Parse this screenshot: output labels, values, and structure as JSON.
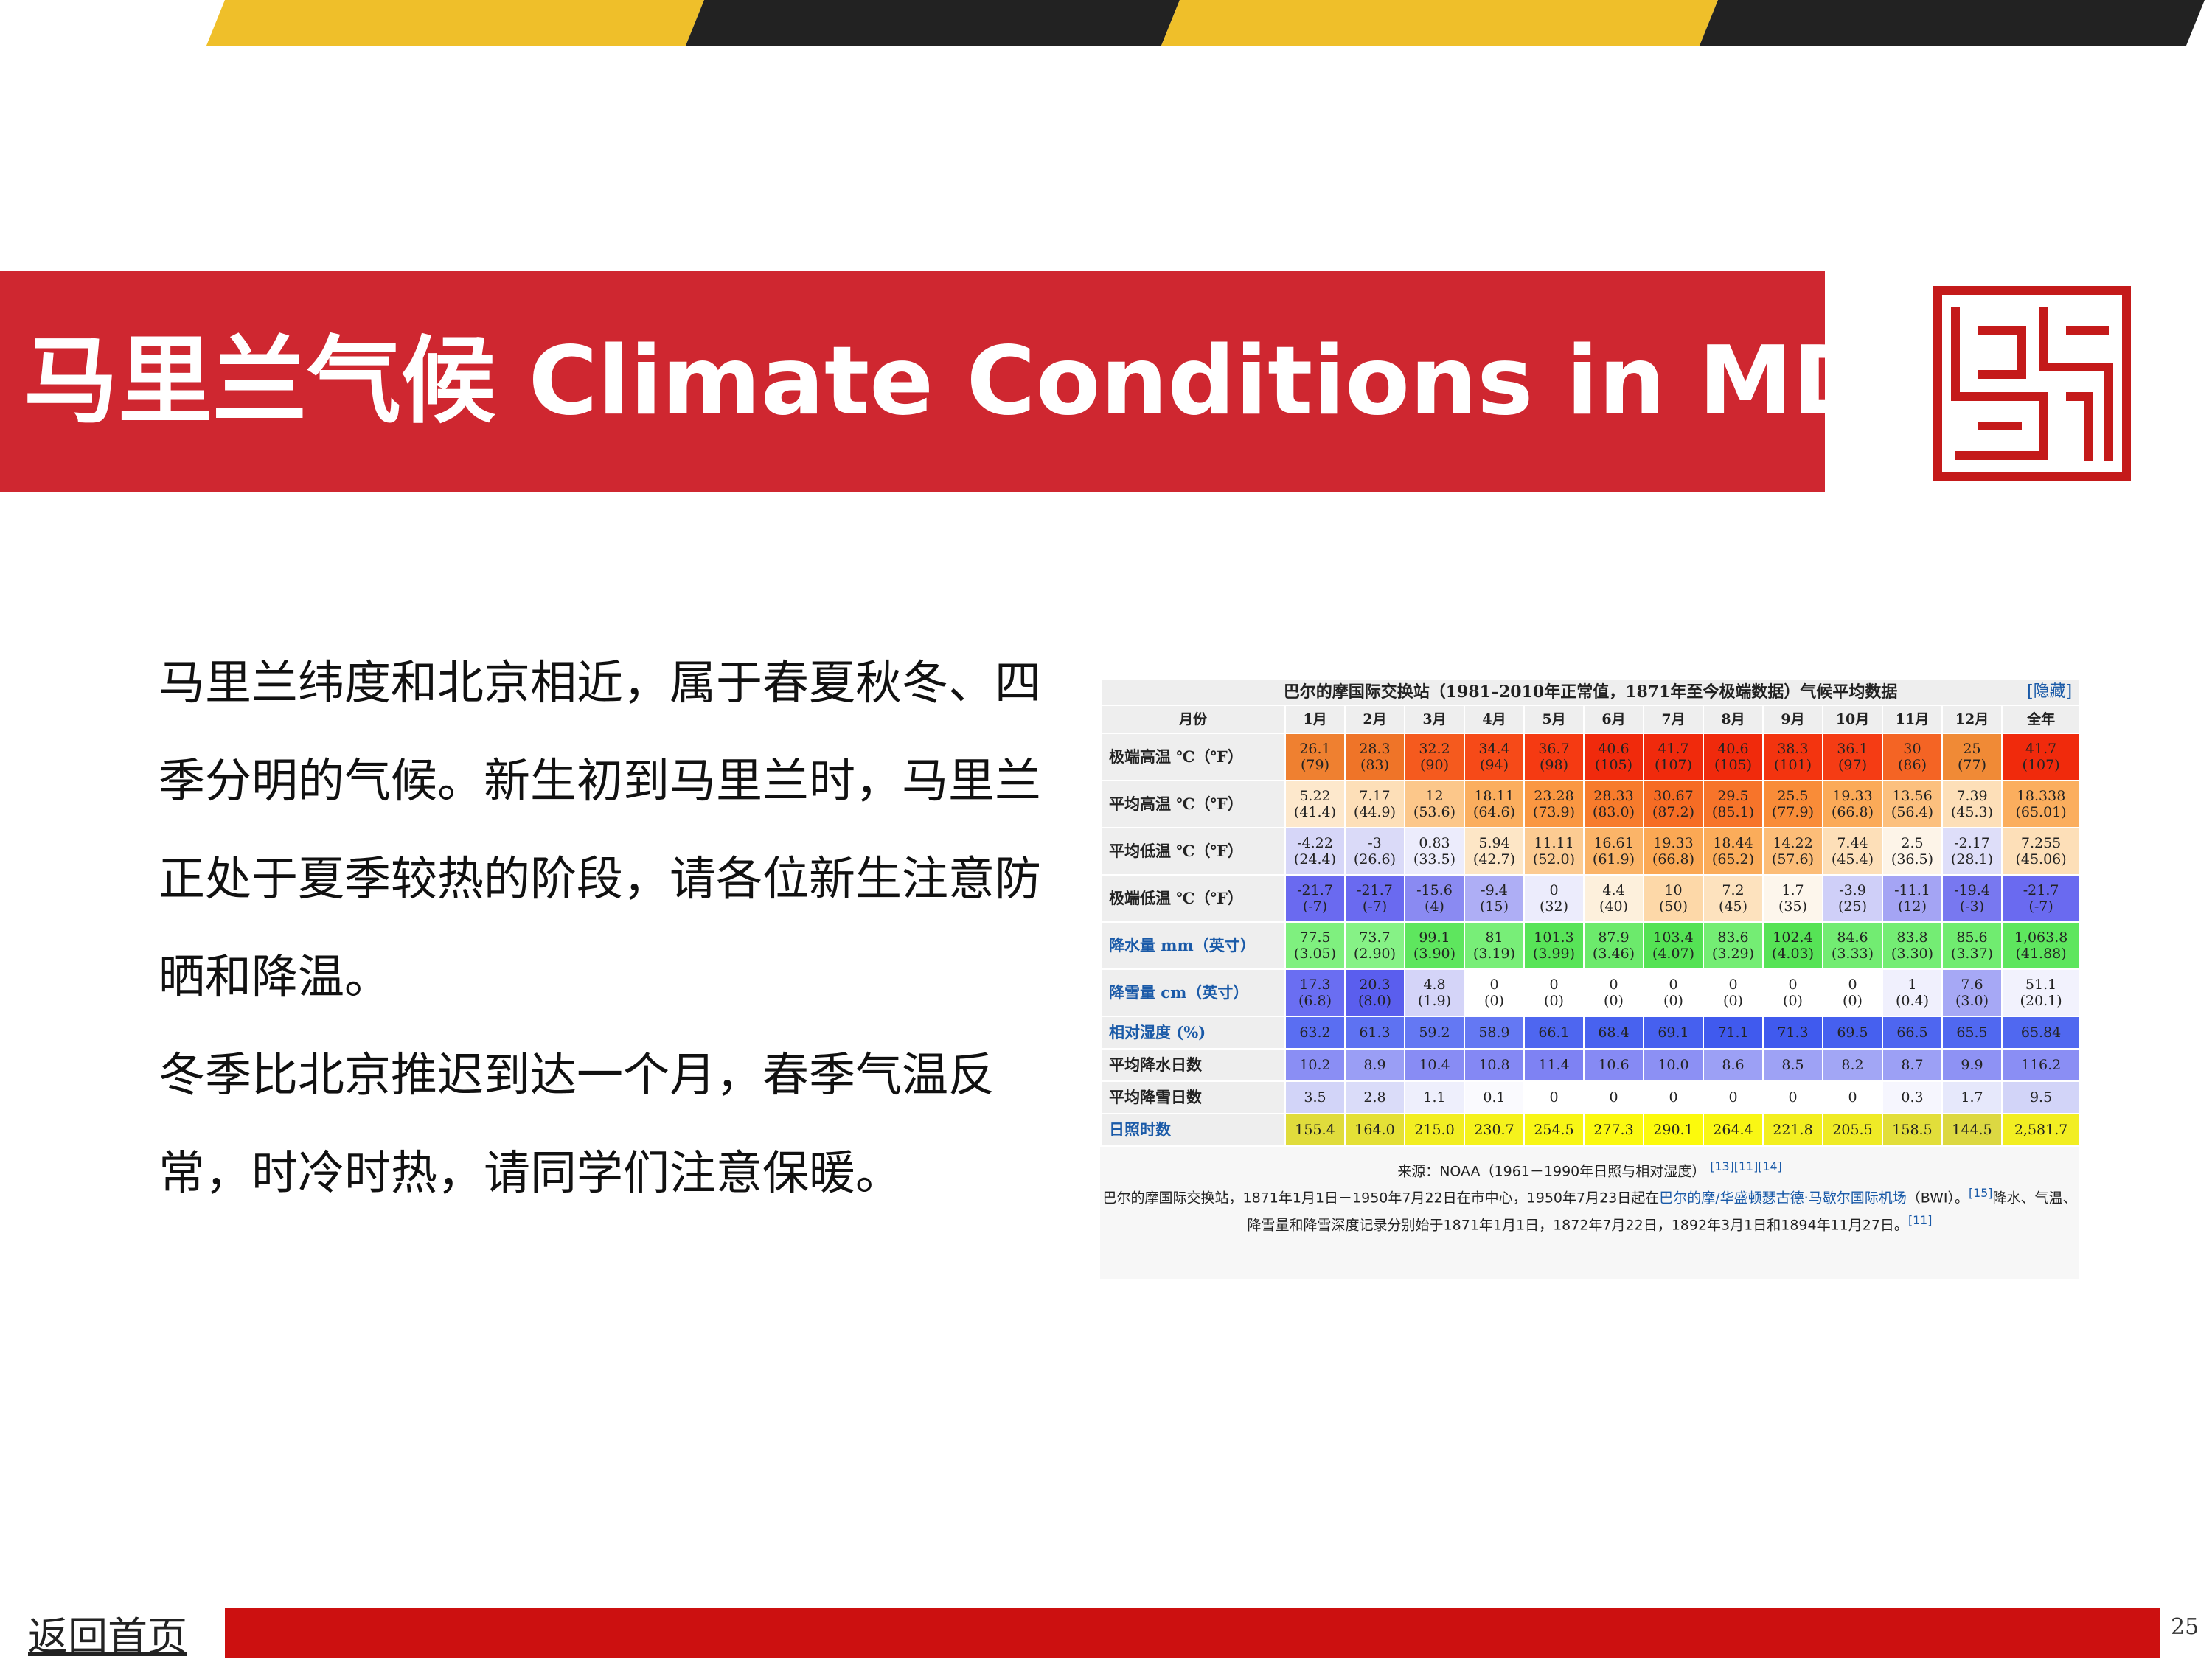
{
  "colors": {
    "accent_red": "#cf2730",
    "stripe_yellow": "#efbf2a",
    "stripe_dark": "#222222",
    "footer_red": "#cc1010",
    "link_blue": "#1a5aa8"
  },
  "title": "马里兰气候 Climate Conditions in MD",
  "logo_icon": "seal-logo-icon",
  "body": {
    "para1": "马里兰纬度和北京相近，属于春夏秋冬、四季分明的气候。新生初到马里兰时，马里兰正处于夏季较热的阶段，请各位新生注意防晒和降温。",
    "para2": "冬季比北京推迟到达一个月，春季气温反常，时冷时热，请同学们注意保暖。"
  },
  "climate_table": {
    "caption": "巴尔的摩国际交换站（1981–2010年正常值，1871年至今极端数据）气候平均数据",
    "hide_label": "[隐藏]",
    "header_label": "月份",
    "months": [
      "1月",
      "2月",
      "3月",
      "4月",
      "5月",
      "6月",
      "7月",
      "8月",
      "9月",
      "10月",
      "11月",
      "12月",
      "全年"
    ],
    "rows": [
      {
        "label": "极端高温 ℃（℉）",
        "link": false,
        "cells": [
          {
            "v": "26.1",
            "s": "(79)",
            "c": "#ef8030"
          },
          {
            "v": "28.3",
            "s": "(83)",
            "c": "#ef7428"
          },
          {
            "v": "32.2",
            "s": "(90)",
            "c": "#f55a1e"
          },
          {
            "v": "34.4",
            "s": "(94)",
            "c": "#f64a18"
          },
          {
            "v": "36.7",
            "s": "(98)",
            "c": "#f53a12"
          },
          {
            "v": "40.6",
            "s": "(105)",
            "c": "#f02a0c"
          },
          {
            "v": "41.7",
            "s": "(107)",
            "c": "#f02a0c"
          },
          {
            "v": "40.6",
            "s": "(105)",
            "c": "#f02a0c"
          },
          {
            "v": "38.3",
            "s": "(101)",
            "c": "#f3340f"
          },
          {
            "v": "36.1",
            "s": "(97)",
            "c": "#f53c14"
          },
          {
            "v": "30",
            "s": "(86)",
            "c": "#f46424"
          },
          {
            "v": "25",
            "s": "(77)",
            "c": "#f08a36"
          },
          {
            "v": "41.7",
            "s": "(107)",
            "c": "#f02a0c"
          }
        ]
      },
      {
        "label": "平均高温 ℃（℉）",
        "link": false,
        "cells": [
          {
            "v": "5.22",
            "s": "(41.4)",
            "c": "#fde8cc"
          },
          {
            "v": "7.17",
            "s": "(44.9)",
            "c": "#fddfb8"
          },
          {
            "v": "12",
            "s": "(53.6)",
            "c": "#fcc78a"
          },
          {
            "v": "18.11",
            "s": "(64.6)",
            "c": "#fbae5e"
          },
          {
            "v": "23.28",
            "s": "(73.9)",
            "c": "#fa9742"
          },
          {
            "v": "28.33",
            "s": "(83.0)",
            "c": "#f77b2c"
          },
          {
            "v": "30.67",
            "s": "(87.2)",
            "c": "#f66c24"
          },
          {
            "v": "29.5",
            "s": "(85.1)",
            "c": "#f7742a"
          },
          {
            "v": "25.5",
            "s": "(77.9)",
            "c": "#f98c38"
          },
          {
            "v": "19.33",
            "s": "(66.8)",
            "c": "#fbaa58"
          },
          {
            "v": "13.56",
            "s": "(56.4)",
            "c": "#fcc07e"
          },
          {
            "v": "7.39",
            "s": "(45.3)",
            "c": "#fddfb8"
          },
          {
            "v": "18.338",
            "s": "(65.01)",
            "c": "#fbae5e"
          }
        ]
      },
      {
        "label": "平均低温 ℃（℉）",
        "link": false,
        "cells": [
          {
            "v": "-4.22",
            "s": "(24.4)",
            "c": "#d6d6f8"
          },
          {
            "v": "-3",
            "s": "(26.6)",
            "c": "#dadaf8"
          },
          {
            "v": "0.83",
            "s": "(33.5)",
            "c": "#ececfc"
          },
          {
            "v": "5.94",
            "s": "(42.7)",
            "c": "#fde6c6"
          },
          {
            "v": "11.11",
            "s": "(52.0)",
            "c": "#fccb92"
          },
          {
            "v": "16.61",
            "s": "(61.9)",
            "c": "#fbb468"
          },
          {
            "v": "19.33",
            "s": "(66.8)",
            "c": "#fba854"
          },
          {
            "v": "18.44",
            "s": "(65.2)",
            "c": "#fbac5a"
          },
          {
            "v": "14.22",
            "s": "(57.6)",
            "c": "#fcbd78"
          },
          {
            "v": "7.44",
            "s": "(45.4)",
            "c": "#fddfb8"
          },
          {
            "v": "2.5",
            "s": "(36.5)",
            "c": "#fdf4e8"
          },
          {
            "v": "-2.17",
            "s": "(28.1)",
            "c": "#dedef9"
          },
          {
            "v": "7.255",
            "s": "(45.06)",
            "c": "#fddfb8"
          }
        ]
      },
      {
        "label": "极端低温 ℃（℉）",
        "link": false,
        "cells": [
          {
            "v": "-21.7",
            "s": "(-7)",
            "c": "#6a6af0"
          },
          {
            "v": "-21.7",
            "s": "(-7)",
            "c": "#6a6af0"
          },
          {
            "v": "-15.6",
            "s": "(4)",
            "c": "#8a8af2"
          },
          {
            "v": "-9.4",
            "s": "(15)",
            "c": "#aeaef5"
          },
          {
            "v": "0",
            "s": "(32)",
            "c": "#ececfc"
          },
          {
            "v": "4.4",
            "s": "(40)",
            "c": "#fdf0dc"
          },
          {
            "v": "10",
            "s": "(50)",
            "c": "#fdd8a8"
          },
          {
            "v": "7.2",
            "s": "(45)",
            "c": "#fde2be"
          },
          {
            "v": "1.7",
            "s": "(35)",
            "c": "#fdf6ec"
          },
          {
            "v": "-3.9",
            "s": "(25)",
            "c": "#cfcff8"
          },
          {
            "v": "-11.1",
            "s": "(12)",
            "c": "#a4a4f4"
          },
          {
            "v": "-19.4",
            "s": "(-3)",
            "c": "#7878f0"
          },
          {
            "v": "-21.7",
            "s": "(-7)",
            "c": "#6a6af0"
          }
        ]
      },
      {
        "label": "降水量 mm（英寸）",
        "link": true,
        "cells": [
          {
            "v": "77.5",
            "s": "(3.05)",
            "c": "#7ff07f"
          },
          {
            "v": "73.7",
            "s": "(2.90)",
            "c": "#86f286"
          },
          {
            "v": "99.1",
            "s": "(3.90)",
            "c": "#5ee65e"
          },
          {
            "v": "81",
            "s": "(3.19)",
            "c": "#78ee78"
          },
          {
            "v": "101.3",
            "s": "(3.99)",
            "c": "#58e458"
          },
          {
            "v": "87.9",
            "s": "(3.46)",
            "c": "#6cea6c"
          },
          {
            "v": "103.4",
            "s": "(4.07)",
            "c": "#54e254"
          },
          {
            "v": "83.6",
            "s": "(3.29)",
            "c": "#74ed74"
          },
          {
            "v": "102.4",
            "s": "(4.03)",
            "c": "#56e356"
          },
          {
            "v": "84.6",
            "s": "(3.33)",
            "c": "#72ec72"
          },
          {
            "v": "83.8",
            "s": "(3.30)",
            "c": "#74ed74"
          },
          {
            "v": "85.6",
            "s": "(3.37)",
            "c": "#70ec70"
          },
          {
            "v": "1,063.8",
            "s": "(41.88)",
            "c": "#5ee65e"
          }
        ]
      },
      {
        "label": "降雪量 cm（英寸）",
        "link": true,
        "cells": [
          {
            "v": "17.3",
            "s": "(6.8)",
            "c": "#6a6ef2"
          },
          {
            "v": "20.3",
            "s": "(8.0)",
            "c": "#5a5eee"
          },
          {
            "v": "4.8",
            "s": "(1.9)",
            "c": "#d4d4f8"
          },
          {
            "v": "0",
            "s": "(0)",
            "c": "#ffffff"
          },
          {
            "v": "0",
            "s": "(0)",
            "c": "#ffffff"
          },
          {
            "v": "0",
            "s": "(0)",
            "c": "#ffffff"
          },
          {
            "v": "0",
            "s": "(0)",
            "c": "#ffffff"
          },
          {
            "v": "0",
            "s": "(0)",
            "c": "#ffffff"
          },
          {
            "v": "0",
            "s": "(0)",
            "c": "#ffffff"
          },
          {
            "v": "0",
            "s": "(0)",
            "c": "#ffffff"
          },
          {
            "v": "1",
            "s": "(0.4)",
            "c": "#f0f0fd"
          },
          {
            "v": "7.6",
            "s": "(3.0)",
            "c": "#a6a8f5"
          },
          {
            "v": "51.1",
            "s": "(20.1)",
            "c": "#f2f2fd"
          }
        ]
      }
    ],
    "single_rows": [
      {
        "label": "相对湿度 (%)",
        "link": true,
        "cells": [
          {
            "v": "63.2",
            "c": "#5a6ef2"
          },
          {
            "v": "61.3",
            "c": "#5e72f2"
          },
          {
            "v": "59.2",
            "c": "#6478f3"
          },
          {
            "v": "58.9",
            "c": "#6478f3"
          },
          {
            "v": "66.1",
            "c": "#4e66f0"
          },
          {
            "v": "68.4",
            "c": "#4862ef"
          },
          {
            "v": "69.1",
            "c": "#4660ef"
          },
          {
            "v": "71.1",
            "c": "#405aee"
          },
          {
            "v": "71.3",
            "c": "#405aee"
          },
          {
            "v": "69.5",
            "c": "#4660ef"
          },
          {
            "v": "66.5",
            "c": "#4e66f0"
          },
          {
            "v": "65.5",
            "c": "#5068f0"
          },
          {
            "v": "65.84",
            "c": "#5068f0"
          }
        ]
      },
      {
        "label": "平均降水日数",
        "link": false,
        "cells": [
          {
            "v": "10.2",
            "c": "#8a8ef4"
          },
          {
            "v": "8.9",
            "c": "#9a9ef5"
          },
          {
            "v": "10.4",
            "c": "#888cf4"
          },
          {
            "v": "10.8",
            "c": "#8488f4"
          },
          {
            "v": "11.4",
            "c": "#7e82f3"
          },
          {
            "v": "10.6",
            "c": "#868af4"
          },
          {
            "v": "10.0",
            "c": "#8c90f4"
          },
          {
            "v": "8.6",
            "c": "#9ca0f5"
          },
          {
            "v": "8.5",
            "c": "#9ea2f5"
          },
          {
            "v": "8.2",
            "c": "#a2a6f5"
          },
          {
            "v": "8.7",
            "c": "#9ca0f5"
          },
          {
            "v": "9.9",
            "c": "#8e92f4"
          },
          {
            "v": "116.2",
            "c": "#8a8ef4"
          }
        ]
      },
      {
        "label": "平均降雪日数",
        "link": false,
        "cells": [
          {
            "v": "3.5",
            "c": "#d2d4f8"
          },
          {
            "v": "2.8",
            "c": "#dadcf9"
          },
          {
            "v": "1.1",
            "c": "#eeeffc"
          },
          {
            "v": "0.1",
            "c": "#fafafe"
          },
          {
            "v": "0",
            "c": "#ffffff"
          },
          {
            "v": "0",
            "c": "#ffffff"
          },
          {
            "v": "0",
            "c": "#ffffff"
          },
          {
            "v": "0",
            "c": "#ffffff"
          },
          {
            "v": "0",
            "c": "#ffffff"
          },
          {
            "v": "0",
            "c": "#ffffff"
          },
          {
            "v": "0.3",
            "c": "#f6f6fe"
          },
          {
            "v": "1.7",
            "c": "#e6e8fb"
          },
          {
            "v": "9.5",
            "c": "#d2d4f8"
          }
        ]
      },
      {
        "label": "日照时数",
        "link": true,
        "cells": [
          {
            "v": "155.4",
            "c": "#e0dc3c"
          },
          {
            "v": "164.0",
            "c": "#e4e036"
          },
          {
            "v": "215.0",
            "c": "#f2ee22"
          },
          {
            "v": "230.7",
            "c": "#f5f21c"
          },
          {
            "v": "254.5",
            "c": "#f8f616"
          },
          {
            "v": "277.3",
            "c": "#fbf910"
          },
          {
            "v": "290.1",
            "c": "#fcfa0c"
          },
          {
            "v": "264.4",
            "c": "#f9f714"
          },
          {
            "v": "221.8",
            "c": "#f3ef20"
          },
          {
            "v": "205.5",
            "c": "#efeb26"
          },
          {
            "v": "158.5",
            "c": "#e2de3a"
          },
          {
            "v": "144.5",
            "c": "#dcd842"
          },
          {
            "v": "2,581.7",
            "c": "#f2ee22"
          }
        ]
      }
    ],
    "source_line": "来源：NOAA（1961－1990年日照与相对湿度）",
    "source_refs": "[13][11][14]",
    "note_part1": "巴尔的摩国际交换站，1871年1月1日－1950年7月22日在市中心，1950年7月23日起在",
    "note_link": "巴尔的摩/华盛顿瑟古德·马歇尔国际机场",
    "note_part2": "（BWI）。",
    "note_ref1": "[15]",
    "note_part3": "降水、气温、降雪量和降雪深度记录分别始于1871年1月1日，1872年7月22日，1892年3月1日和1894年11月27日。",
    "note_ref2": "[11]"
  },
  "footer": {
    "home_link": "返回首页",
    "page_number": "25"
  }
}
